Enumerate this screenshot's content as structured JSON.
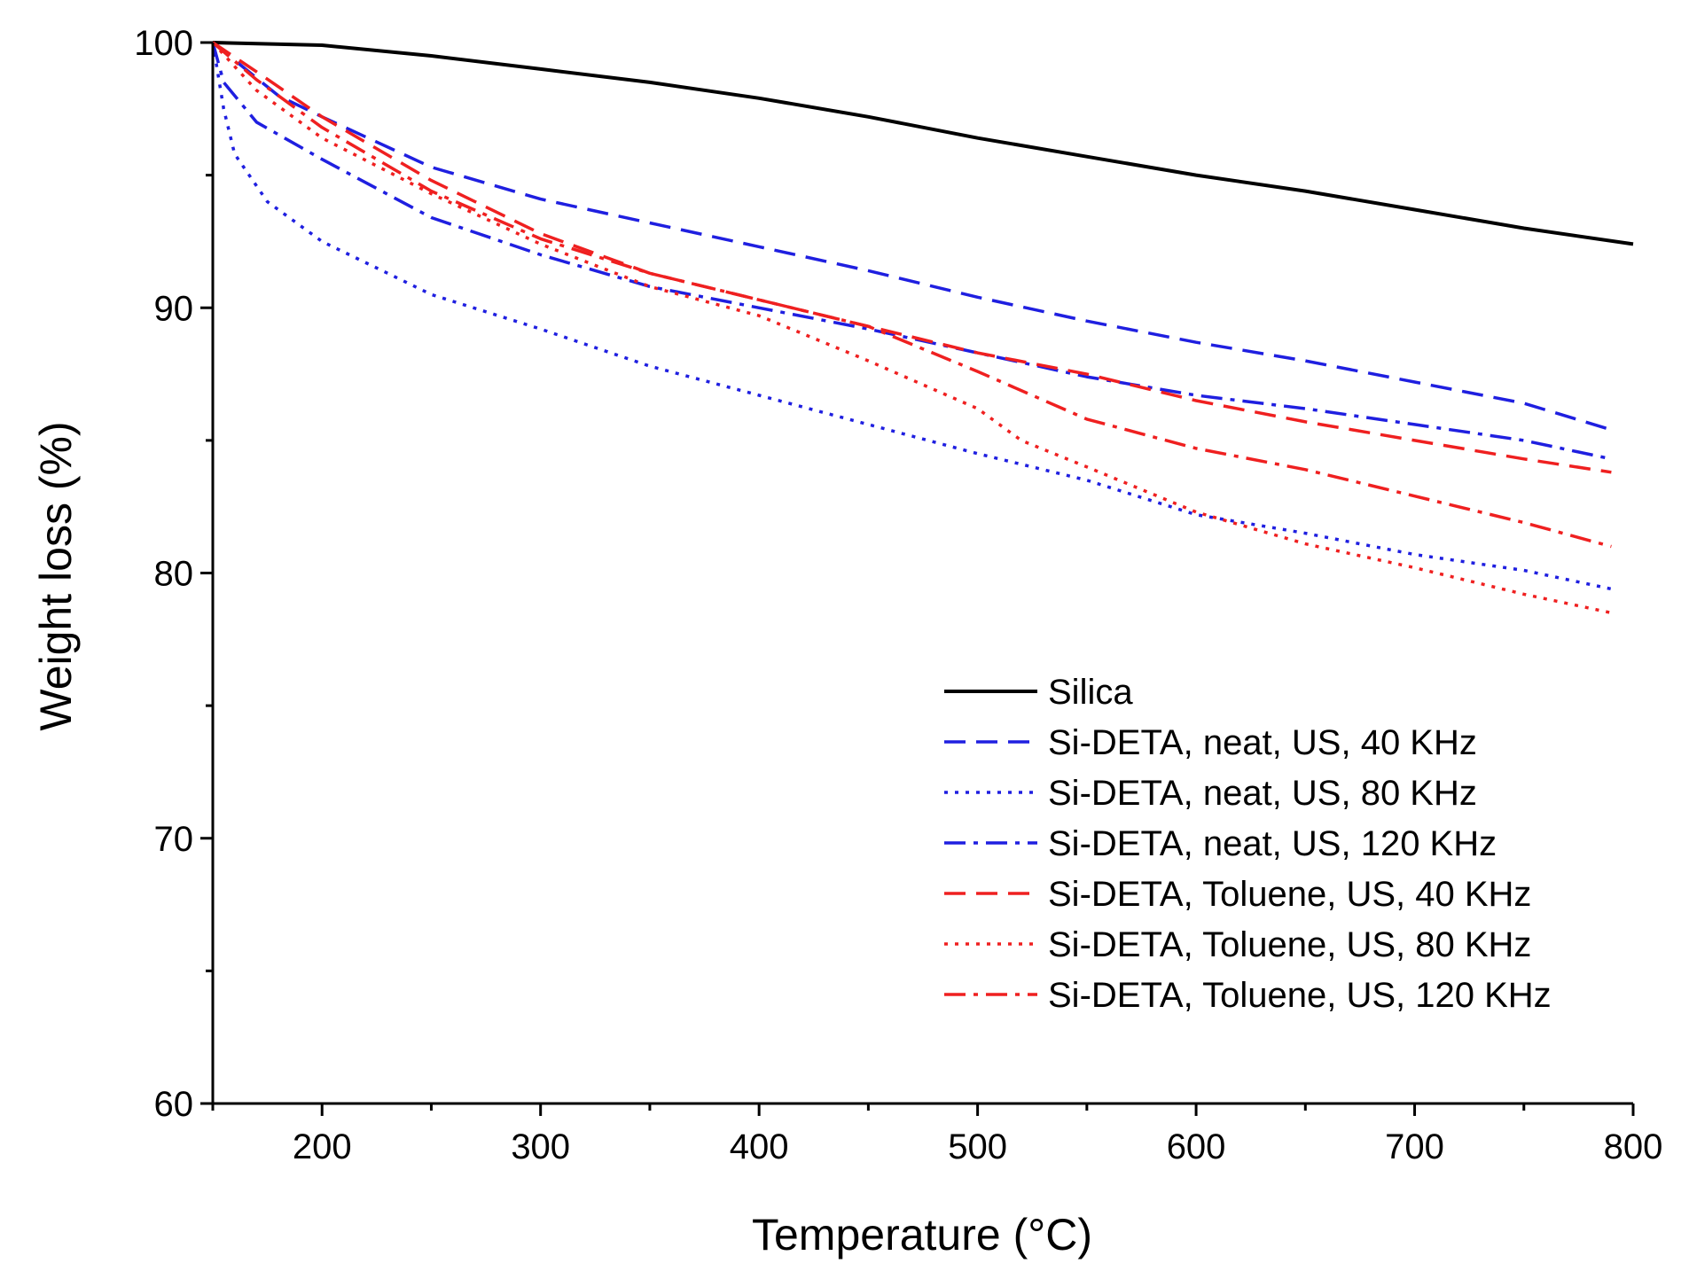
{
  "chart_data": {
    "type": "line",
    "title": "",
    "xlabel": "Temperature (°C)",
    "ylabel": "Weight loss (%)",
    "xlim": [
      150,
      800
    ],
    "ylim": [
      60,
      100
    ],
    "xticks": [
      200,
      300,
      400,
      500,
      600,
      700,
      800
    ],
    "yticks": [
      60,
      70,
      80,
      90,
      100
    ],
    "grid": false,
    "legend_position": "bottom-right",
    "series": [
      {
        "name": "Silica",
        "color": "#000000",
        "style": "solid",
        "x": [
          150,
          200,
          250,
          300,
          350,
          400,
          450,
          500,
          550,
          600,
          650,
          700,
          750,
          800
        ],
        "y": [
          100,
          99.9,
          99.5,
          99.0,
          98.5,
          97.9,
          97.2,
          96.4,
          95.7,
          95.0,
          94.4,
          93.7,
          93.0,
          92.4
        ]
      },
      {
        "name": "Si-DETA, neat, US, 40 KHz",
        "color": "#1f1fe0",
        "style": "dash",
        "x": [
          150,
          180,
          200,
          250,
          300,
          350,
          400,
          450,
          500,
          550,
          600,
          650,
          700,
          750,
          790
        ],
        "y": [
          100,
          98.0,
          97.2,
          95.3,
          94.1,
          93.2,
          92.3,
          91.4,
          90.4,
          89.5,
          88.7,
          88.0,
          87.2,
          86.4,
          85.4
        ]
      },
      {
        "name": "Si-DETA, neat, US, 80 KHz",
        "color": "#1f1fe0",
        "style": "dot",
        "x": [
          150,
          155,
          160,
          175,
          200,
          250,
          300,
          350,
          400,
          450,
          500,
          550,
          600,
          650,
          700,
          750,
          790
        ],
        "y": [
          100,
          97.5,
          95.8,
          94.0,
          92.5,
          90.5,
          89.2,
          87.8,
          86.7,
          85.6,
          84.5,
          83.5,
          82.2,
          81.5,
          80.7,
          80.1,
          79.4
        ]
      },
      {
        "name": "Si-DETA, neat, US, 120 KHz",
        "color": "#1f1fe0",
        "style": "dashdot",
        "x": [
          150,
          155,
          170,
          200,
          250,
          300,
          350,
          400,
          450,
          500,
          550,
          600,
          650,
          700,
          750,
          790
        ],
        "y": [
          100,
          98.5,
          97.0,
          95.6,
          93.4,
          92.0,
          90.8,
          90.0,
          89.2,
          88.3,
          87.4,
          86.7,
          86.2,
          85.6,
          85.0,
          84.3
        ]
      },
      {
        "name": "Si-DETA, Toluene, US, 40 KHz",
        "color": "#ef2020",
        "style": "dash",
        "x": [
          150,
          170,
          200,
          250,
          300,
          350,
          400,
          450,
          500,
          550,
          600,
          650,
          700,
          750,
          790
        ],
        "y": [
          100,
          98.9,
          97.2,
          94.8,
          92.8,
          91.3,
          90.3,
          89.3,
          88.3,
          87.5,
          86.5,
          85.7,
          85.0,
          84.3,
          83.8
        ]
      },
      {
        "name": "Si-DETA, Toluene, US, 80 KHz",
        "color": "#ef2020",
        "style": "dot",
        "x": [
          150,
          170,
          200,
          250,
          300,
          350,
          400,
          450,
          500,
          520,
          550,
          600,
          650,
          700,
          750,
          790
        ],
        "y": [
          100,
          98.2,
          96.4,
          94.3,
          92.4,
          90.8,
          89.7,
          88.0,
          86.2,
          85.0,
          84.0,
          82.3,
          81.1,
          80.2,
          79.2,
          78.5
        ]
      },
      {
        "name": "Si-DETA, Toluene, US, 120 KHz",
        "color": "#ef2020",
        "style": "dashdot",
        "x": [
          150,
          170,
          200,
          250,
          300,
          350,
          400,
          450,
          500,
          550,
          600,
          650,
          700,
          750,
          790
        ],
        "y": [
          100,
          98.6,
          96.8,
          94.4,
          92.6,
          91.3,
          90.3,
          89.3,
          87.6,
          85.8,
          84.7,
          83.9,
          82.9,
          81.9,
          81.0
        ]
      }
    ]
  }
}
